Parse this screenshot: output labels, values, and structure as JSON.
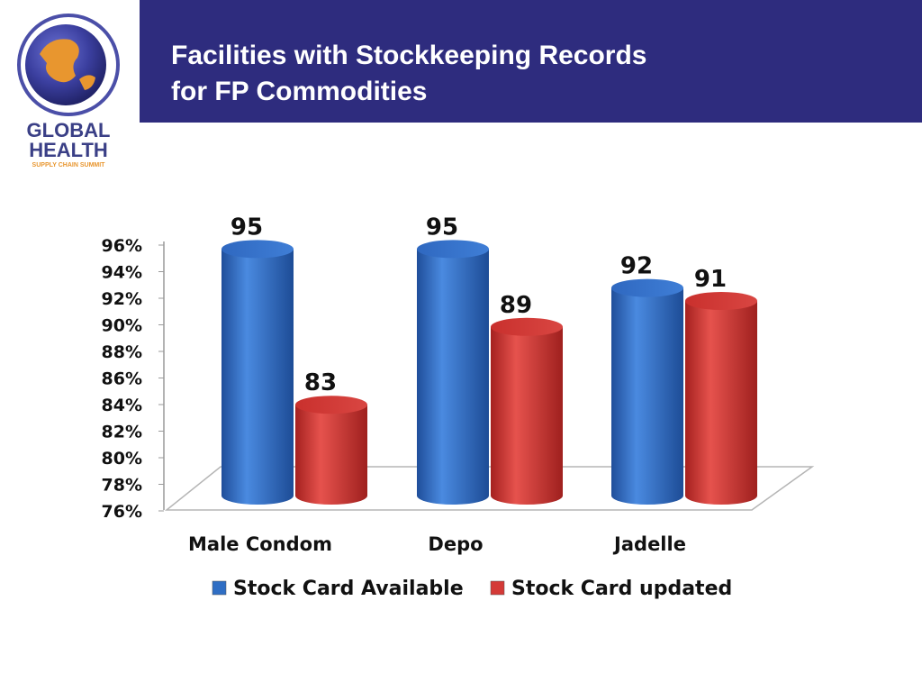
{
  "header": {
    "title_line1": "Facilities with Stockkeeping Records",
    "title_line2": "for FP Commodities"
  },
  "logo": {
    "line1": "GLOBAL",
    "line2": "HEALTH",
    "line3": "SUPPLY CHAIN SUMMIT"
  },
  "colors": {
    "header_bg": "#2e2c7e",
    "available": "#2f6ec4",
    "updated": "#d43a37"
  },
  "chart_data": {
    "type": "bar",
    "title": "",
    "xlabel": "",
    "ylabel": "",
    "categories": [
      "Male Condom",
      "Depo",
      "Jadelle"
    ],
    "series": [
      {
        "name": "Stock Card Available",
        "values": [
          95,
          95,
          92
        ],
        "labels": [
          "95",
          "95",
          "92"
        ]
      },
      {
        "name": "Stock Card updated",
        "values": [
          83,
          89,
          91
        ],
        "labels": [
          "83",
          "89",
          "91"
        ]
      }
    ],
    "yticks": [
      "76%",
      "78%",
      "80%",
      "82%",
      "84%",
      "86%",
      "88%",
      "90%",
      "92%",
      "94%",
      "96%"
    ],
    "ylim": [
      76,
      96
    ],
    "legend_position": "bottom",
    "grid": false
  }
}
